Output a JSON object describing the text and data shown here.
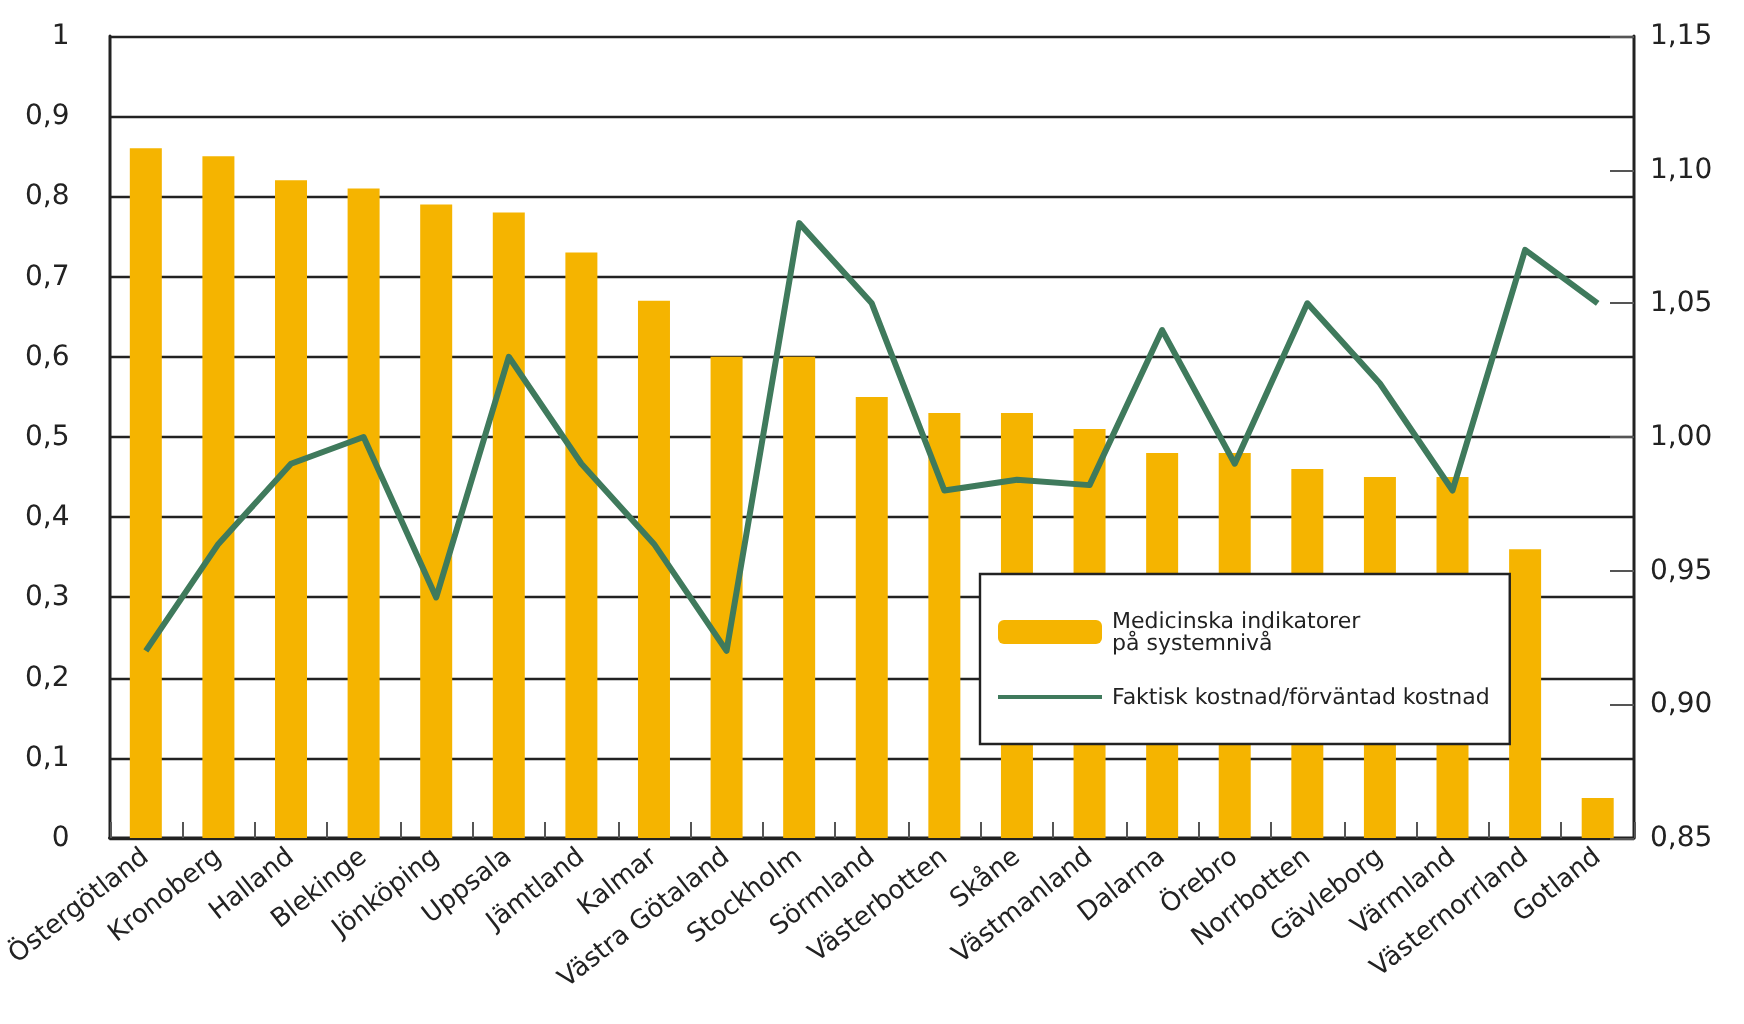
{
  "chart_data": {
    "type": "bar",
    "categories": [
      "Östergötland",
      "Kronoberg",
      "Halland",
      "Blekinge",
      "Jönköping",
      "Uppsala",
      "Jämtland",
      "Kalmar",
      "Västra Götaland",
      "Stockholm",
      "Sörmland",
      "Västerbotten",
      "Skåne",
      "Västmanland",
      "Dalarna",
      "Örebro",
      "Norrbotten",
      "Gävleborg",
      "Värmland",
      "Västernorrland",
      "Gotland"
    ],
    "series": [
      {
        "name": "Medicinska indikatorer\npå systemnivå",
        "color": "#f5b400",
        "values": [
          0.86,
          0.85,
          0.82,
          0.81,
          0.79,
          0.78,
          0.73,
          0.67,
          0.6,
          0.6,
          0.55,
          0.53,
          0.53,
          0.51,
          0.48,
          0.48,
          0.46,
          0.45,
          0.45,
          0.36,
          0.05
        ]
      },
      {
        "name": "Faktisk kostnad/förväntad kostnad",
        "type": "line",
        "axis": "y2",
        "color": "#3f7a5c",
        "values": [
          0.92,
          0.96,
          0.99,
          1.0,
          0.94,
          1.03,
          0.99,
          0.96,
          0.92,
          1.08,
          1.05,
          0.98,
          0.984,
          0.982,
          1.04,
          0.99,
          1.05,
          1.02,
          0.98,
          1.07,
          1.05
        ]
      }
    ],
    "ylim": [
      0,
      1
    ],
    "yticks": [
      0,
      {
        "value": 0.1,
        "label": "0,1"
      },
      {
        "value": 0.2,
        "label": "0,2"
      },
      {
        "value": 0.3,
        "label": "0,3"
      },
      {
        "value": 0.4,
        "label": "0,4"
      },
      {
        "value": 0.5,
        "label": "0,5"
      },
      {
        "value": 0.6,
        "label": "0,6"
      },
      {
        "value": 0.7,
        "label": "0,7"
      },
      {
        "value": 0.8,
        "label": "0,8"
      },
      {
        "value": 0.9,
        "label": "0,9"
      },
      1
    ],
    "y2lim": [
      0.85,
      1.15
    ],
    "y2ticks": [
      {
        "value": 0.85,
        "label": "0,85"
      },
      {
        "value": 0.9,
        "label": "0,90"
      },
      {
        "value": 0.95,
        "label": "0,95"
      },
      {
        "value": 1.0,
        "label": "1,00"
      },
      {
        "value": 1.05,
        "label": "1,05"
      },
      {
        "value": 1.1,
        "label": "1,10"
      },
      {
        "value": 1.15,
        "label": "1,15"
      }
    ],
    "grid": "y",
    "legend": "bottom right",
    "marker": "none",
    "line_style": "solid"
  }
}
